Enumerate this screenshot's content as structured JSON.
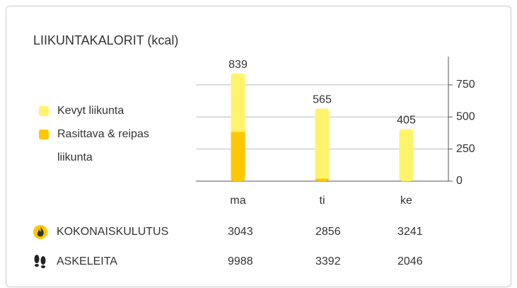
{
  "chart_data": {
    "type": "stacked_bar",
    "title": "LIIKUNTAKALORIT (kcal)",
    "categories": [
      "ma",
      "ti",
      "ke"
    ],
    "series": [
      {
        "name": "Rasittava & reipas liikunta",
        "color": "#ffc800",
        "values": [
          385,
          20,
          0
        ]
      },
      {
        "name": "Kevyt liikunta",
        "color": "#fff36b",
        "values": [
          454,
          545,
          405
        ]
      }
    ],
    "totals": [
      839,
      565,
      405
    ],
    "ylim": [
      0,
      970
    ],
    "yticks": [
      0,
      250,
      500,
      750
    ],
    "grid": true,
    "legend": "left"
  },
  "summary": {
    "rows": [
      {
        "label": "KOKONAISKULUTUS",
        "values": [
          3043,
          2856,
          3241
        ]
      },
      {
        "label": "ASKELEITA",
        "values": [
          9988,
          3392,
          2046
        ]
      }
    ]
  }
}
